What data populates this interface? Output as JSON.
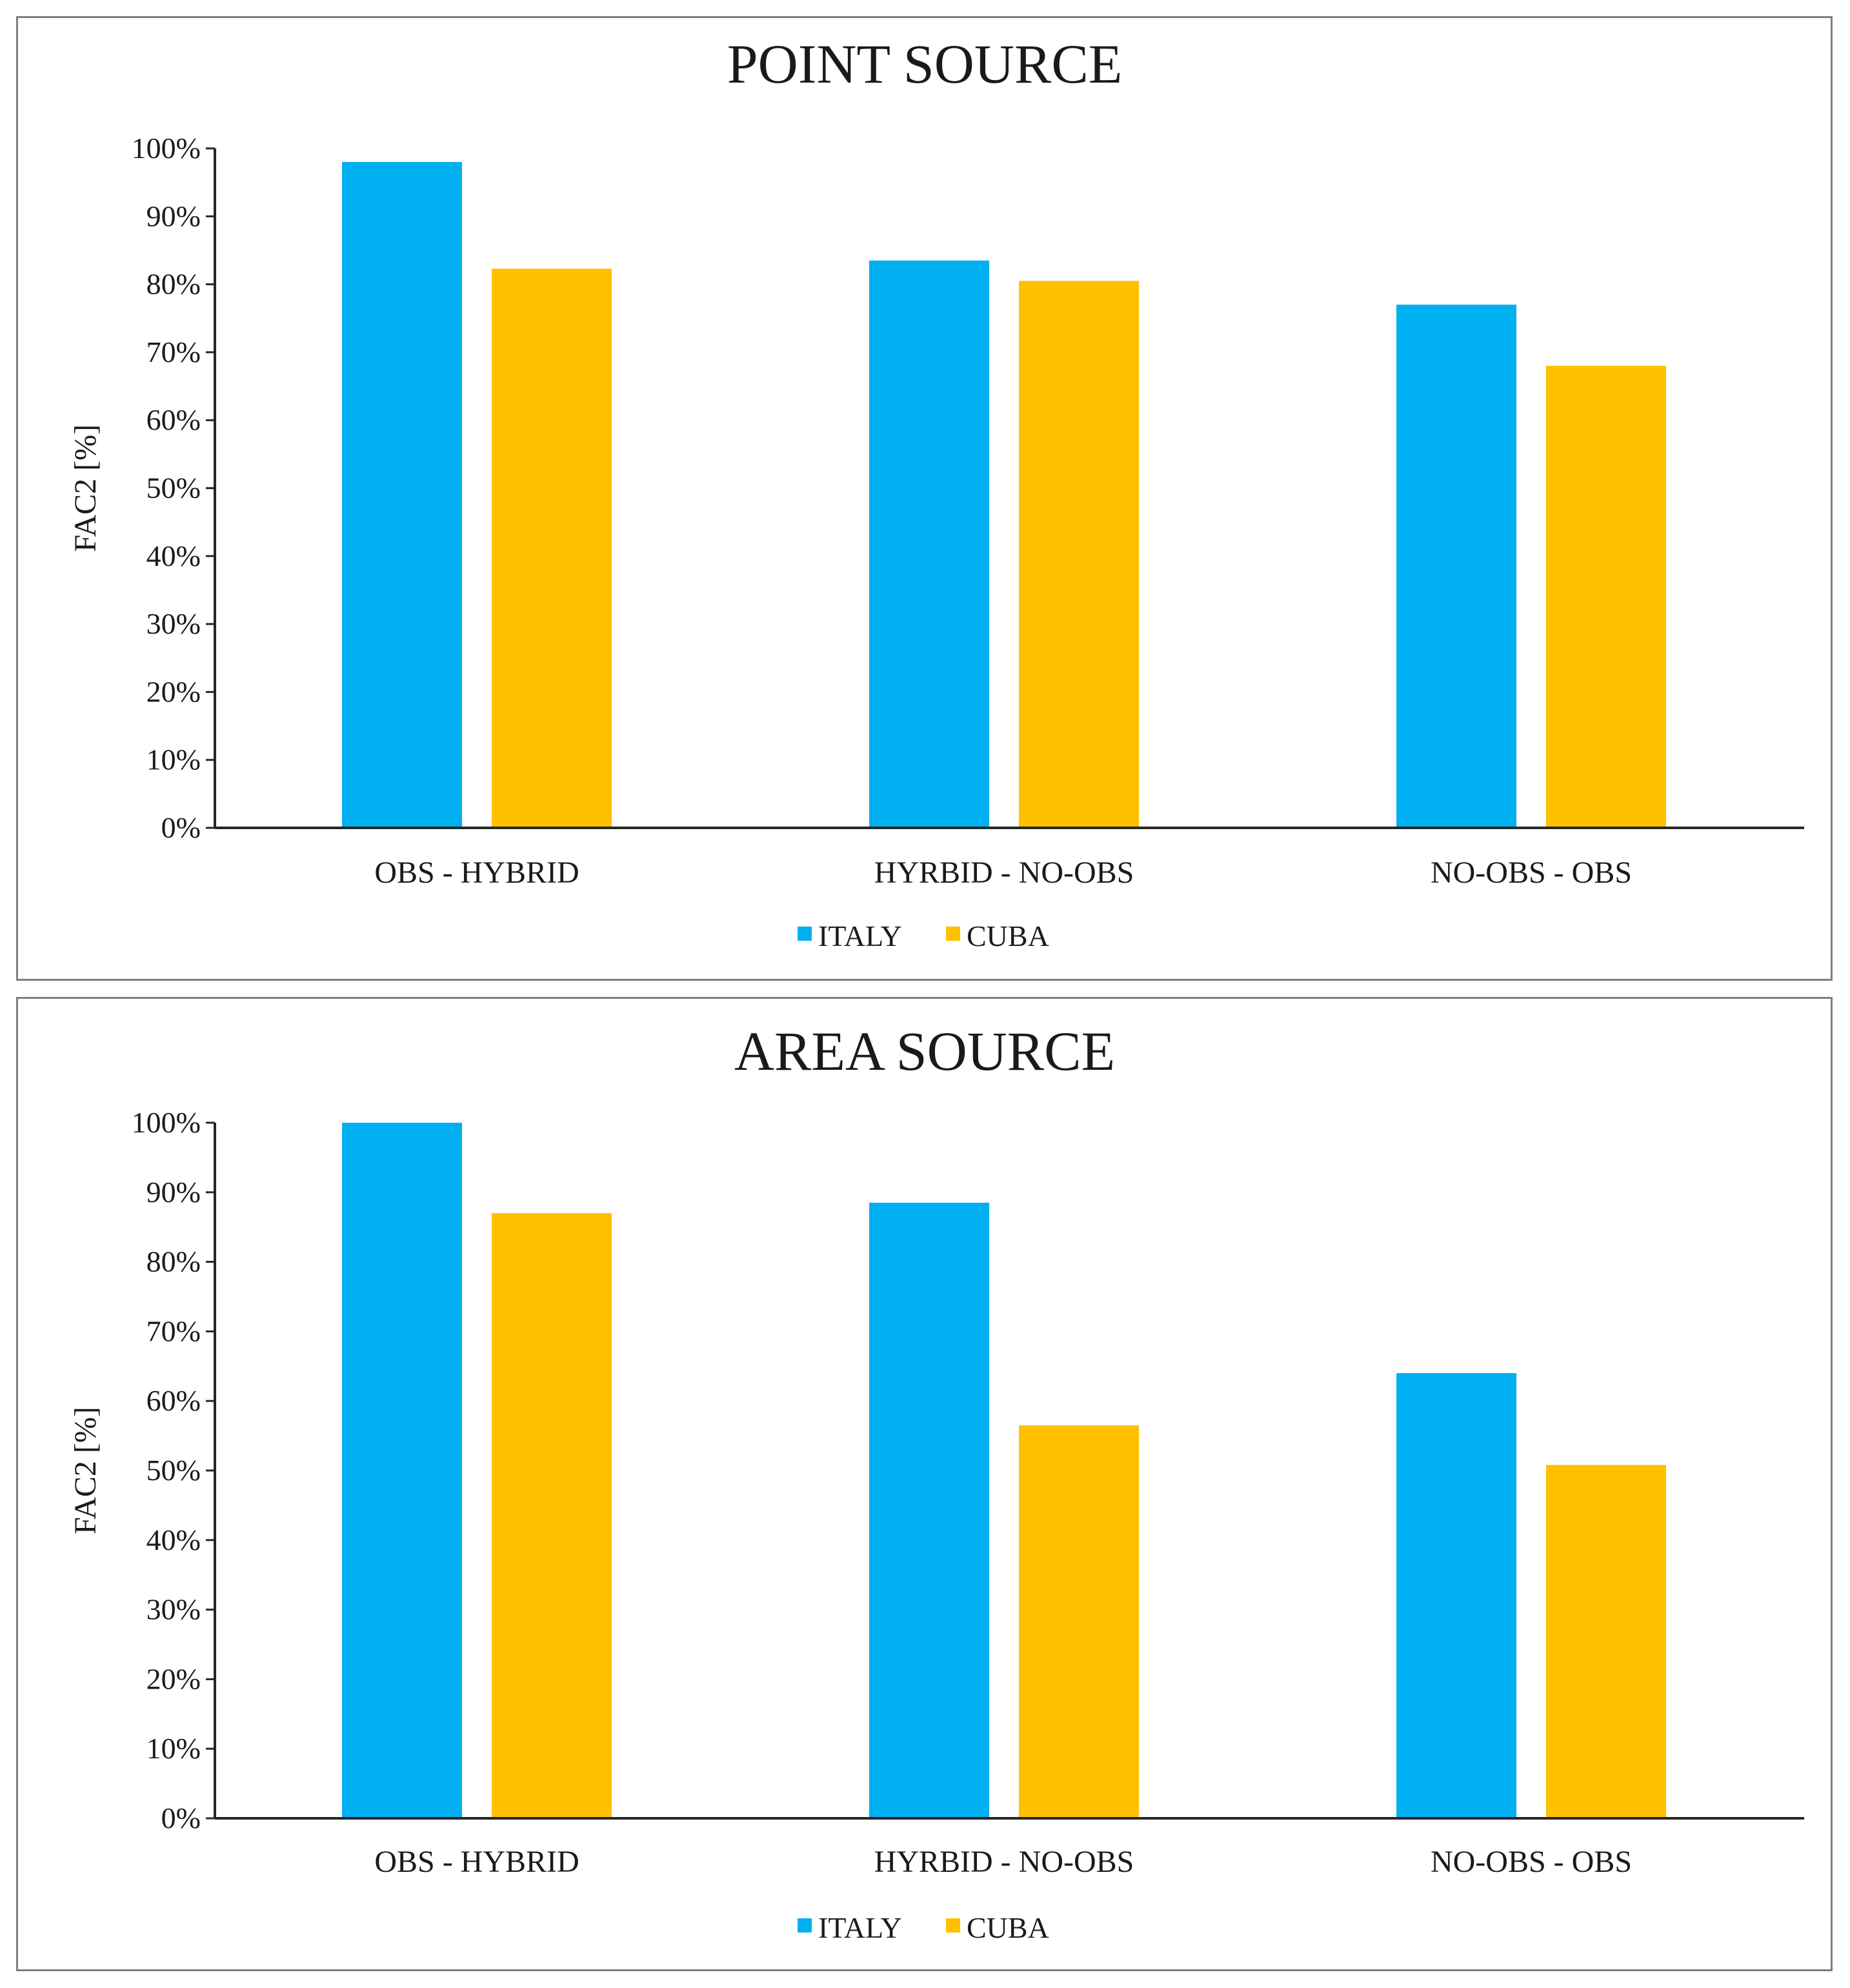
{
  "chart_data": [
    {
      "type": "bar",
      "title": "POINT SOURCE",
      "xlabel": "",
      "ylabel": "FAC2  [%]",
      "ylim": [
        0,
        100
      ],
      "yticks": [
        "0%",
        "10%",
        "20%",
        "30%",
        "40%",
        "50%",
        "60%",
        "70%",
        "80%",
        "90%",
        "100%"
      ],
      "categories": [
        "OBS - HYBRID",
        "HYRBID - NO-OBS",
        "NO-OBS - OBS"
      ],
      "series": [
        {
          "name": "ITALY",
          "color": "#00b0f0",
          "values": [
            98,
            83.5,
            77
          ]
        },
        {
          "name": "CUBA",
          "color": "#ffc000",
          "values": [
            82.3,
            80.5,
            68
          ]
        }
      ],
      "legend": "bottom-center",
      "grid": false
    },
    {
      "type": "bar",
      "title": "AREA SOURCE",
      "xlabel": "",
      "ylabel": "FAC2 [%]",
      "ylim": [
        0,
        100
      ],
      "yticks": [
        "0%",
        "10%",
        "20%",
        "30%",
        "40%",
        "50%",
        "60%",
        "70%",
        "80%",
        "90%",
        "100%"
      ],
      "categories": [
        "OBS - HYBRID",
        "HYRBID - NO-OBS",
        "NO-OBS - OBS"
      ],
      "series": [
        {
          "name": "ITALY",
          "color": "#00b0f0",
          "values": [
            100,
            88.5,
            64
          ]
        },
        {
          "name": "CUBA",
          "color": "#ffc000",
          "values": [
            87,
            56.5,
            50.8
          ]
        }
      ],
      "legend": "bottom-center",
      "grid": false
    }
  ]
}
